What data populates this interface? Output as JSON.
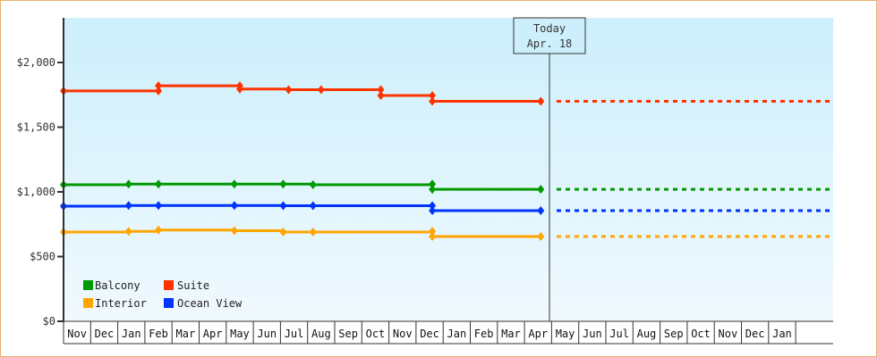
{
  "chart_data": {
    "type": "line",
    "title": "",
    "xlabel": "",
    "ylabel": "",
    "ylim": [
      0,
      2350
    ],
    "y_ticks": [
      {
        "value": 0,
        "label": "$0"
      },
      {
        "value": 500,
        "label": "$500"
      },
      {
        "value": 1000,
        "label": "$1,000"
      },
      {
        "value": 1500,
        "label": "$1,500"
      },
      {
        "value": 2000,
        "label": "$2,000"
      }
    ],
    "x_ticks": [
      "Nov",
      "Dec",
      "Jan",
      "Feb",
      "Mar",
      "Apr",
      "May",
      "Jun",
      "Jul",
      "Aug",
      "Sep",
      "Oct",
      "Nov",
      "Dec",
      "Jan",
      "Feb",
      "Mar",
      "Apr",
      "May",
      "Jun",
      "Jul",
      "Aug",
      "Sep",
      "Oct",
      "Nov",
      "Dec",
      "Jan"
    ],
    "grid": false,
    "legend_position": "lower-left",
    "annotation": {
      "line1": "Today",
      "line2": "Apr. 18",
      "x_month_index": 17.6
    },
    "series": [
      {
        "name": "Suite",
        "color": "#ff3300",
        "step": true,
        "points": [
          {
            "x": 0,
            "y": 1780
          },
          {
            "x": 3.5,
            "y": 1780
          },
          {
            "x": 3.5,
            "y": 1820
          },
          {
            "x": 6.5,
            "y": 1820
          },
          {
            "x": 6.5,
            "y": 1795
          },
          {
            "x": 8.3,
            "y": 1790
          },
          {
            "x": 9.5,
            "y": 1790
          },
          {
            "x": 11.7,
            "y": 1790
          },
          {
            "x": 11.7,
            "y": 1745
          },
          {
            "x": 13.6,
            "y": 1745
          },
          {
            "x": 13.6,
            "y": 1700
          },
          {
            "x": 17.6,
            "y": 1700
          }
        ],
        "projection": 1700
      },
      {
        "name": "Balcony",
        "color": "#009900",
        "step": true,
        "points": [
          {
            "x": 0,
            "y": 1055
          },
          {
            "x": 2.4,
            "y": 1060
          },
          {
            "x": 3.5,
            "y": 1060
          },
          {
            "x": 6.3,
            "y": 1060
          },
          {
            "x": 8.1,
            "y": 1060
          },
          {
            "x": 9.2,
            "y": 1055
          },
          {
            "x": 13.6,
            "y": 1060
          },
          {
            "x": 13.6,
            "y": 1020
          },
          {
            "x": 17.6,
            "y": 1020
          }
        ],
        "projection": 1020
      },
      {
        "name": "Ocean View",
        "color": "#0033ff",
        "step": true,
        "points": [
          {
            "x": 0,
            "y": 890
          },
          {
            "x": 2.4,
            "y": 895
          },
          {
            "x": 3.5,
            "y": 895
          },
          {
            "x": 6.3,
            "y": 895
          },
          {
            "x": 8.1,
            "y": 893
          },
          {
            "x": 9.2,
            "y": 893
          },
          {
            "x": 13.6,
            "y": 893
          },
          {
            "x": 13.6,
            "y": 855
          },
          {
            "x": 17.6,
            "y": 855
          }
        ],
        "projection": 855
      },
      {
        "name": "Interior",
        "color": "#ffa500",
        "step": true,
        "points": [
          {
            "x": 0,
            "y": 690
          },
          {
            "x": 2.4,
            "y": 695
          },
          {
            "x": 3.5,
            "y": 705
          },
          {
            "x": 6.3,
            "y": 700
          },
          {
            "x": 8.1,
            "y": 690
          },
          {
            "x": 9.2,
            "y": 690
          },
          {
            "x": 13.6,
            "y": 695
          },
          {
            "x": 13.6,
            "y": 655
          },
          {
            "x": 17.6,
            "y": 655
          }
        ],
        "projection": 655
      }
    ]
  },
  "legend": [
    {
      "label": "Balcony",
      "color": "#009900"
    },
    {
      "label": "Suite",
      "color": "#ff3300"
    },
    {
      "label": "Interior",
      "color": "#ffa500"
    },
    {
      "label": "Ocean View",
      "color": "#0033ff"
    }
  ],
  "today": {
    "line1": "Today",
    "line2": "Apr. 18"
  }
}
